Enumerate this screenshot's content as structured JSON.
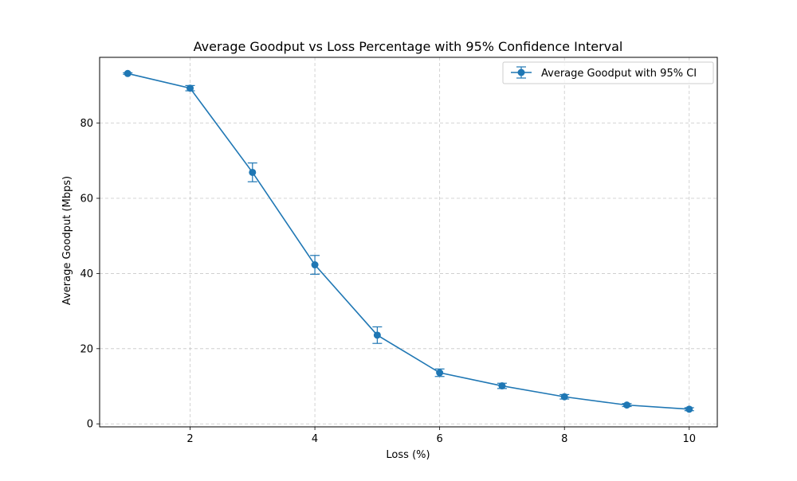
{
  "chart_data": {
    "type": "line",
    "title": "Average Goodput vs Loss Percentage with 95% Confidence Interval",
    "xlabel": "Loss (%)",
    "ylabel": "Average Goodput (Mbps)",
    "xlim": [
      0.55,
      10.45
    ],
    "ylim": [
      -0.8,
      97.5
    ],
    "xticks": [
      2,
      4,
      6,
      8,
      10
    ],
    "yticks": [
      0,
      20,
      40,
      60,
      80
    ],
    "grid": true,
    "legend_position": "top-right",
    "series": [
      {
        "name": "Average Goodput with 95% CI",
        "color": "#1f77b4",
        "x": [
          1,
          2,
          3,
          4,
          5,
          6,
          7,
          8,
          9,
          10
        ],
        "y": [
          93.2,
          89.3,
          66.9,
          42.3,
          23.6,
          13.6,
          10.1,
          7.2,
          5.0,
          3.9
        ],
        "ci_lower": [
          93.0,
          88.6,
          64.4,
          39.8,
          21.4,
          12.6,
          9.4,
          6.6,
          4.6,
          3.5
        ],
        "ci_upper": [
          93.4,
          90.0,
          69.4,
          44.8,
          25.8,
          14.6,
          10.8,
          7.8,
          5.4,
          4.3
        ]
      }
    ]
  }
}
